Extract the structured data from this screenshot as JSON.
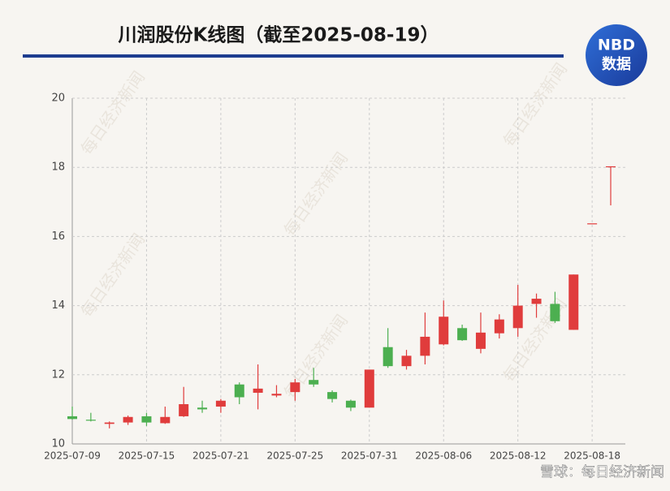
{
  "chart_data": {
    "type": "candlestick",
    "title": "川润股份K线图（截至2025-08-19）",
    "logo": [
      "NBD",
      "数据"
    ],
    "watermark": "每日经济新闻",
    "source": "雪球：每日经济新闻",
    "categories": [
      "2025-07-09",
      null,
      null,
      null,
      "2025-07-15",
      null,
      null,
      null,
      "2025-07-21",
      null,
      null,
      null,
      "2025-07-25",
      null,
      null,
      null,
      "2025-07-31",
      null,
      null,
      null,
      "2025-08-06",
      null,
      null,
      null,
      "2025-08-12",
      null,
      null,
      null,
      "2025-08-18",
      null
    ],
    "open": [
      10.8,
      10.7,
      10.58,
      10.62,
      10.8,
      10.6,
      10.8,
      11.05,
      11.08,
      11.72,
      11.48,
      11.4,
      11.5,
      11.85,
      11.5,
      11.25,
      11.05,
      12.8,
      12.25,
      12.55,
      12.88,
      13.35,
      12.75,
      13.2,
      13.35,
      14.05,
      14.05,
      13.3,
      16.38,
      18.02
    ],
    "high": [
      11.08,
      10.9,
      10.65,
      10.82,
      10.9,
      11.08,
      11.65,
      11.25,
      11.3,
      11.78,
      12.3,
      11.7,
      11.88,
      12.2,
      11.55,
      11.28,
      12.15,
      13.35,
      12.72,
      13.8,
      14.15,
      13.45,
      13.8,
      13.75,
      14.6,
      14.35,
      14.4,
      14.9,
      16.38,
      18.03
    ],
    "low": [
      10.7,
      10.65,
      10.45,
      10.55,
      10.52,
      10.58,
      10.78,
      10.9,
      10.9,
      11.15,
      11.0,
      11.35,
      11.25,
      11.65,
      11.2,
      10.95,
      11.05,
      12.2,
      12.15,
      12.3,
      12.85,
      12.98,
      12.62,
      13.05,
      13.1,
      13.65,
      13.5,
      13.3,
      16.38,
      16.9
    ],
    "close": [
      10.72,
      10.68,
      10.62,
      10.78,
      10.62,
      10.78,
      11.15,
      11.0,
      11.25,
      11.35,
      11.6,
      11.45,
      11.78,
      11.72,
      11.3,
      11.05,
      12.15,
      12.25,
      12.55,
      13.1,
      13.68,
      13.0,
      13.22,
      13.6,
      14.0,
      14.2,
      13.55,
      14.9,
      16.38,
      18.03
    ],
    "up_color": "#e03c3c",
    "down_color": "#4caf50",
    "ylim": [
      10,
      20
    ],
    "yticks": [
      10,
      12,
      14,
      16,
      18,
      20
    ],
    "grid": true
  }
}
